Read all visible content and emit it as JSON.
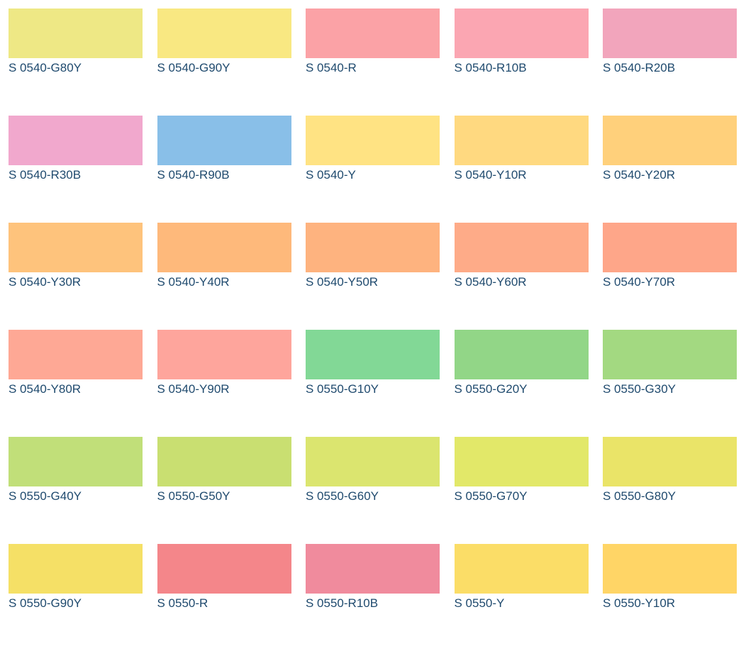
{
  "swatches": [
    {
      "code": "S 0540-G80Y",
      "color": "#eee885"
    },
    {
      "code": "S 0540-G90Y",
      "color": "#f9e882"
    },
    {
      "code": "S 0540-R",
      "color": "#fba2a6"
    },
    {
      "code": "S 0540-R10B",
      "color": "#fba6b2"
    },
    {
      "code": "S 0540-R20B",
      "color": "#f2a5bc"
    },
    {
      "code": "S 0540-R30B",
      "color": "#f1a8cd"
    },
    {
      "code": "S 0540-R90B",
      "color": "#89bfe8"
    },
    {
      "code": "S 0540-Y",
      "color": "#ffe383"
    },
    {
      "code": "S 0540-Y10R",
      "color": "#ffd980"
    },
    {
      "code": "S 0540-Y20R",
      "color": "#ffd07b"
    },
    {
      "code": "S 0540-Y30R",
      "color": "#fec37c"
    },
    {
      "code": "S 0540-Y40R",
      "color": "#feb97b"
    },
    {
      "code": "S 0540-Y50R",
      "color": "#feb37f"
    },
    {
      "code": "S 0540-Y60R",
      "color": "#feab88"
    },
    {
      "code": "S 0540-Y70R",
      "color": "#fea689"
    },
    {
      "code": "S 0540-Y80R",
      "color": "#fea895"
    },
    {
      "code": "S 0540-Y90R",
      "color": "#fea59c"
    },
    {
      "code": "S 0550-G10Y",
      "color": "#82d896"
    },
    {
      "code": "S 0550-G20Y",
      "color": "#92d687"
    },
    {
      "code": "S 0550-G30Y",
      "color": "#a3d981"
    },
    {
      "code": "S 0550-G40Y",
      "color": "#c1df79"
    },
    {
      "code": "S 0550-G50Y",
      "color": "#c9df71"
    },
    {
      "code": "S 0550-G60Y",
      "color": "#dbe56f"
    },
    {
      "code": "S 0550-G70Y",
      "color": "#e2e869"
    },
    {
      "code": "S 0550-G80Y",
      "color": "#eae468"
    },
    {
      "code": "S 0550-G90Y",
      "color": "#f5e066"
    },
    {
      "code": "S 0550-R",
      "color": "#f4868a"
    },
    {
      "code": "S 0550-R10B",
      "color": "#f08b9d"
    },
    {
      "code": "S 0550-Y",
      "color": "#fbdd67"
    },
    {
      "code": "S 0550-Y10R",
      "color": "#ffd566"
    }
  ]
}
